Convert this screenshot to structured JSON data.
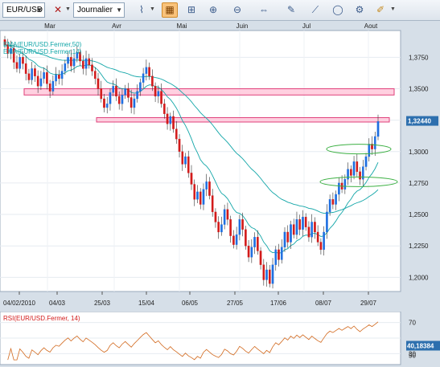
{
  "toolbar": {
    "symbol": "EUR/USD",
    "period": "Journalier",
    "icons": [
      "symbol-dropdown",
      "candles-icon",
      "period-dropdown",
      "line-chart-icon",
      "grid-icon",
      "crosshair-icon",
      "zoom-in-icon",
      "zoom-out-icon",
      "scroll-icon",
      "text-tool-icon",
      "line-tool-icon",
      "ellipse-tool-icon",
      "properties-icon",
      "eraser-icon"
    ]
  },
  "colors": {
    "bull": "#1f6fe0",
    "bear": "#d21a1a",
    "ema50": "#12a6a8",
    "ema14": "#12a6a8",
    "zone_fill": "#ffc0d6",
    "zone_stroke": "#e0407a",
    "ellipse": "#3cb043",
    "rsi": "#d2691e",
    "badge": "#2d6fae"
  },
  "chart_data": [
    {
      "type": "candlestick",
      "indicators": [
        "EMA(EUR/USD.Fermer,50)",
        "EMA(EUR/USD.Fermer,14)"
      ],
      "month_labels": [
        "Mar",
        "Avr",
        "Mai",
        "Juin",
        "Jul",
        "Aout"
      ],
      "date_ticks": [
        "04/02/2010",
        "04/03",
        "25/03",
        "15/04",
        "06/05",
        "27/05",
        "17/06",
        "08/07",
        "29/07"
      ],
      "y_ticks": [
        "1,3750",
        "1,3500",
        "1,3250",
        "1,3000",
        "1,2750",
        "1,2500",
        "1,2250",
        "1,2000"
      ],
      "y_tick_values": [
        1.375,
        1.35,
        1.325,
        1.3,
        1.275,
        1.25,
        1.225,
        1.2
      ],
      "last_price": "1,32440",
      "last_price_value": 1.3244,
      "zones": [
        [
          1.345,
          1.35
        ],
        [
          1.3235,
          1.327
        ]
      ],
      "ellipses": [
        [
          1.302
        ],
        [
          1.276
        ]
      ],
      "closes": [
        1.385,
        1.378,
        1.382,
        1.371,
        1.366,
        1.375,
        1.37,
        1.362,
        1.357,
        1.366,
        1.36,
        1.352,
        1.358,
        1.363,
        1.354,
        1.348,
        1.356,
        1.361,
        1.358,
        1.364,
        1.37,
        1.375,
        1.368,
        1.374,
        1.379,
        1.372,
        1.366,
        1.374,
        1.369,
        1.364,
        1.358,
        1.35,
        1.342,
        1.335,
        1.338,
        1.347,
        1.352,
        1.344,
        1.338,
        1.345,
        1.35,
        1.343,
        1.335,
        1.342,
        1.348,
        1.355,
        1.362,
        1.367,
        1.36,
        1.352,
        1.344,
        1.348,
        1.338,
        1.33,
        1.322,
        1.328,
        1.318,
        1.31,
        1.3,
        1.29,
        1.296,
        1.283,
        1.274,
        1.262,
        1.268,
        1.258,
        1.27,
        1.276,
        1.265,
        1.252,
        1.244,
        1.236,
        1.242,
        1.254,
        1.246,
        1.233,
        1.226,
        1.234,
        1.246,
        1.238,
        1.225,
        1.216,
        1.224,
        1.232,
        1.221,
        1.21,
        1.198,
        1.206,
        1.195,
        1.21,
        1.222,
        1.214,
        1.224,
        1.236,
        1.228,
        1.242,
        1.234,
        1.246,
        1.238,
        1.248,
        1.24,
        1.232,
        1.244,
        1.236,
        1.228,
        1.222,
        1.236,
        1.252,
        1.262,
        1.258,
        1.266,
        1.275,
        1.27,
        1.278,
        1.286,
        1.281,
        1.292,
        1.284,
        1.278,
        1.288,
        1.296,
        1.306,
        1.302,
        1.312,
        1.324
      ],
      "ylim": [
        1.19,
        1.395
      ]
    },
    {
      "type": "line",
      "title": "RSI(EUR/USD.Fermer, 14)",
      "y_ticks": [
        "70",
        "50",
        "30"
      ],
      "y_tick_values": [
        70,
        50,
        30
      ],
      "last_value": "40,18384",
      "last_value_number": 40.18,
      "ylim": [
        20,
        80
      ]
    }
  ]
}
